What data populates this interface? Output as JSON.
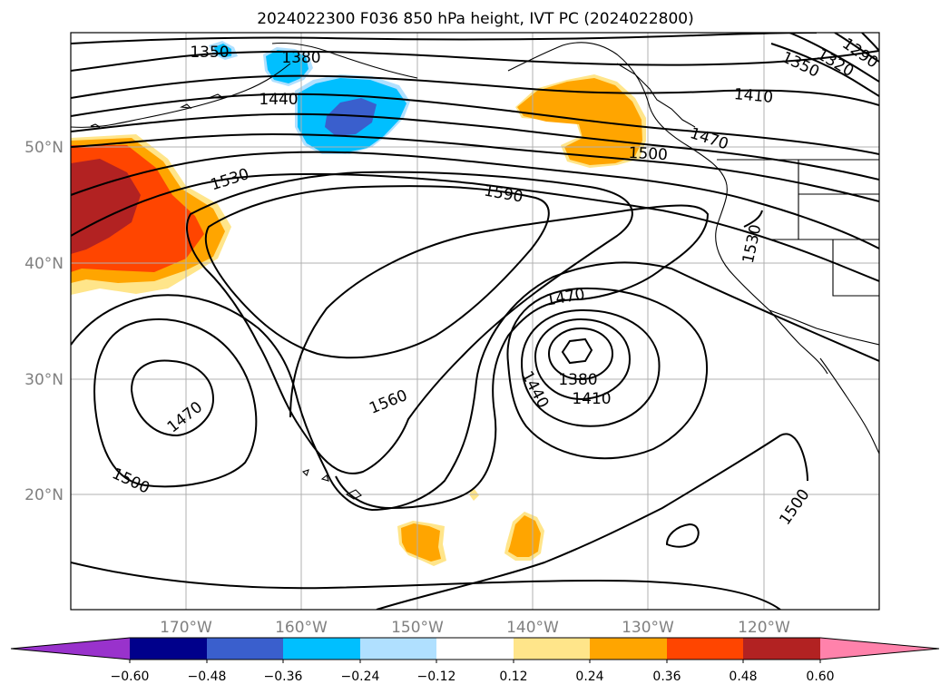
{
  "title": "2024022300 F036 850 hPa height, IVT PC (2024022800)",
  "lat_labels": [
    "50°N",
    "40°N",
    "30°N",
    "20°N"
  ],
  "lon_labels": [
    "170°W",
    "160°W",
    "150°W",
    "140°W",
    "130°W",
    "120°W"
  ],
  "contour_labels": [
    "1350",
    "1380",
    "1440",
    "1530",
    "1590",
    "1410",
    "1470",
    "1500",
    "1320",
    "1290",
    "1350",
    "1530",
    "1470",
    "1380",
    "1410",
    "1440",
    "1560",
    "1470",
    "1500",
    "1500"
  ],
  "colorbar": {
    "ticks": [
      "−0.60",
      "−0.48",
      "−0.36",
      "−0.24",
      "−0.12",
      "0.12",
      "0.24",
      "0.36",
      "0.48",
      "0.60"
    ],
    "colors": [
      "#9932cc",
      "#00008b",
      "#3a5fcd",
      "#00bfff",
      "#b0e0ff",
      "#ffffff",
      "#ffe58a",
      "#ffa500",
      "#ff4500",
      "#b22222",
      "#ff82ab"
    ]
  },
  "colors": {
    "very_positive": "#b22222",
    "strong_positive": "#ff4500",
    "positive": "#ffa500",
    "weak_positive": "#ffe58a",
    "weak_negative": "#b0e0ff",
    "negative": "#00bfff",
    "strong_negative": "#3a5fcd"
  }
}
